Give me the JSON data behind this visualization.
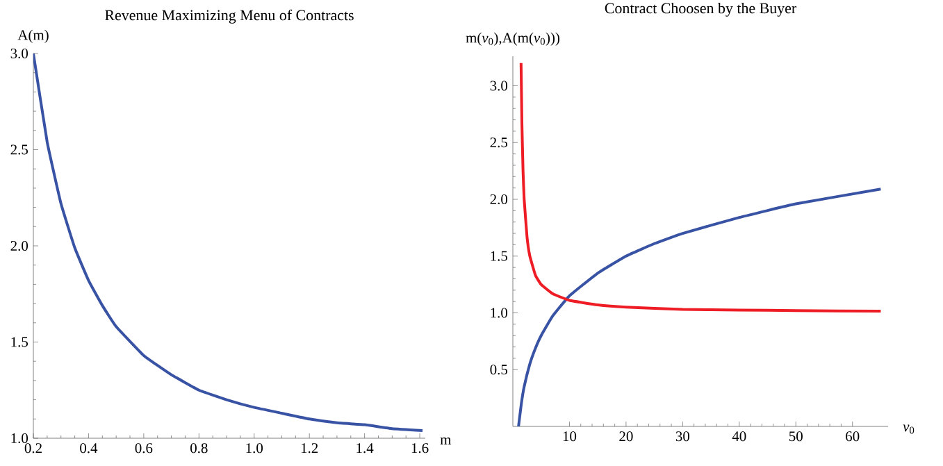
{
  "chart_data": [
    {
      "type": "line",
      "title": "Revenue Maximizing Menu of Contracts",
      "xlabel": "m",
      "ylabel": "A(m)",
      "xlim": [
        0.2,
        1.62
      ],
      "ylim": [
        1.0,
        3.0
      ],
      "xticks": [
        0.2,
        0.4,
        0.6,
        0.8,
        {
          "value": 1,
          "label": "1.0"
        },
        1.2,
        1.4,
        1.6
      ],
      "yticks": [
        {
          "value": 1,
          "label": "1.0"
        },
        1.5,
        {
          "value": 2,
          "label": "2.0"
        },
        2.5,
        {
          "value": 3,
          "label": "3.0"
        }
      ],
      "series": [
        {
          "color": "#3953a4",
          "x": [
            0.2,
            0.25,
            0.3,
            0.35,
            0.4,
            0.45,
            0.5,
            0.6,
            0.7,
            0.8,
            0.9,
            1.0,
            1.1,
            1.2,
            1.3,
            1.4,
            1.5,
            1.61
          ],
          "values": [
            3.0,
            2.54,
            2.22,
            1.99,
            1.82,
            1.69,
            1.58,
            1.43,
            1.33,
            1.25,
            1.2,
            1.16,
            1.13,
            1.1,
            1.08,
            1.07,
            1.05,
            1.04
          ]
        }
      ]
    },
    {
      "type": "line",
      "title": "Contract Choosen by the Buyer",
      "xlabel": "*v*$_{0}$",
      "ylabel": "m(*v*$_{0}$),A(m(*v*$_{0}$)))",
      "xlim": [
        0,
        66.3
      ],
      "ylim": [
        0,
        3.26
      ],
      "xticks": [
        10,
        20,
        30,
        40,
        50,
        60
      ],
      "yticks": [
        0.5,
        {
          "value": 1,
          "label": "1.0"
        },
        1.5,
        {
          "value": 2,
          "label": "2.0"
        },
        2.5,
        {
          "value": 3,
          "label": "3.0"
        }
      ],
      "series": [
        {
          "color": "#3953a4",
          "x": [
            1,
            1.5,
            2,
            3,
            4,
            5,
            7,
            10,
            15,
            20,
            25,
            30,
            40,
            50,
            65
          ],
          "values": [
            0,
            0.2,
            0.35,
            0.55,
            0.69,
            0.8,
            0.97,
            1.15,
            1.35,
            1.5,
            1.61,
            1.7,
            1.84,
            1.96,
            2.09
          ]
        },
        {
          "color": "#ee1c25",
          "x": [
            1.45,
            1.6,
            1.8,
            2,
            2.5,
            3,
            4,
            5,
            7,
            10,
            15,
            20,
            30,
            40,
            50,
            65
          ],
          "values": [
            3.2,
            2.67,
            2.25,
            2.0,
            1.67,
            1.5,
            1.33,
            1.25,
            1.17,
            1.11,
            1.07,
            1.05,
            1.03,
            1.025,
            1.02,
            1.015
          ]
        }
      ]
    }
  ]
}
